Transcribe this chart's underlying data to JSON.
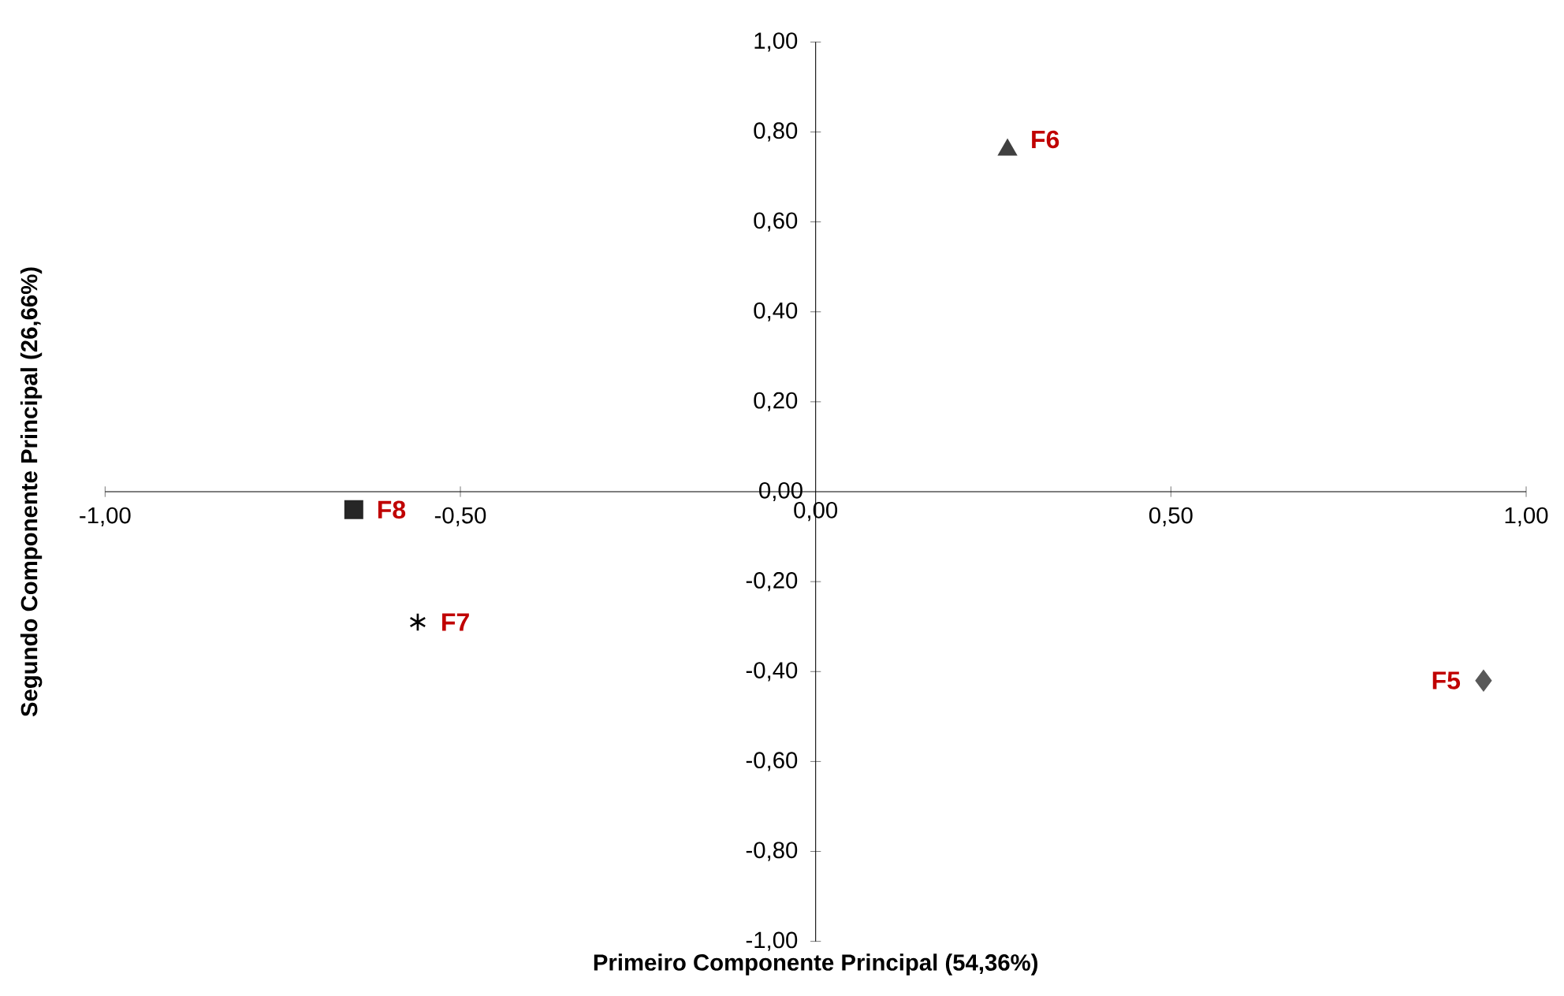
{
  "chart_data": {
    "type": "scatter",
    "xlabel": "Primeiro Componente Principal (54,36%)",
    "ylabel": "Segundo Componente Principal (26,66%)",
    "xlim": [
      -1,
      1
    ],
    "ylim": [
      -1,
      1
    ],
    "xticks": [
      {
        "value": -1,
        "label": "-1,00"
      },
      {
        "value": -0.5,
        "label": "-0,50"
      },
      {
        "value": 0,
        "label": "0,00"
      },
      {
        "value": 0.5,
        "label": "0,50"
      },
      {
        "value": 1,
        "label": "1,00"
      }
    ],
    "yticks": [
      {
        "value": -1,
        "label": "-1,00"
      },
      {
        "value": -0.8,
        "label": "-0,80"
      },
      {
        "value": -0.6,
        "label": "-0,60"
      },
      {
        "value": -0.4,
        "label": "-0,40"
      },
      {
        "value": -0.2,
        "label": "-0,20"
      },
      {
        "value": 0,
        "label": "0,00"
      },
      {
        "value": 0.2,
        "label": "0,20"
      },
      {
        "value": 0.4,
        "label": "0,40"
      },
      {
        "value": 0.6,
        "label": "0,60"
      },
      {
        "value": 0.8,
        "label": "0,80"
      },
      {
        "value": 1,
        "label": "1,00"
      }
    ],
    "grid": false,
    "series": [
      {
        "name": "F5",
        "color": "#595959",
        "marker": "diamond",
        "x": [
          0.94
        ],
        "values": [
          -0.42
        ]
      },
      {
        "name": "F6",
        "color": "#404040",
        "marker": "triangle",
        "x": [
          0.27
        ],
        "values": [
          0.76
        ]
      },
      {
        "name": "F7",
        "color": "#000000",
        "marker": "cross",
        "x": [
          -0.56
        ],
        "values": [
          -0.29
        ]
      },
      {
        "name": "F8",
        "color": "#262626",
        "marker": "square",
        "x": [
          -0.65
        ],
        "values": [
          -0.04
        ]
      }
    ]
  }
}
